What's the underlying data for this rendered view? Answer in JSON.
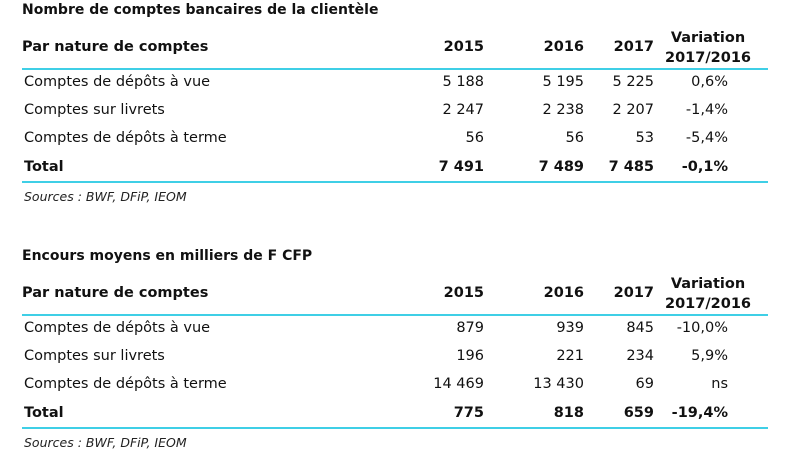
{
  "tables": [
    {
      "title": "Nombre de comptes bancaires de la clientèle",
      "headers": {
        "label": "Par nature de comptes",
        "y2015": "2015",
        "y2016": "2016",
        "y2017": "2017",
        "variation_line1": "Variation",
        "variation_line2": "2017/2016"
      },
      "rows": [
        {
          "label": "Comptes de dépôts à vue",
          "y2015": "5 188",
          "y2016": "5 195",
          "y2017": "5 225",
          "variation": "0,6%"
        },
        {
          "label": "Comptes sur livrets",
          "y2015": "2 247",
          "y2016": "2 238",
          "y2017": "2 207",
          "variation": "-1,4%"
        },
        {
          "label": "Comptes de dépôts à terme",
          "y2015": "56",
          "y2016": "56",
          "y2017": "53",
          "variation": "-5,4%"
        }
      ],
      "total": {
        "label": "Total",
        "y2015": "7 491",
        "y2016": "7 489",
        "y2017": "7 485",
        "variation": "-0,1%"
      },
      "source": "Sources : BWF, DFiP, IEOM"
    },
    {
      "title": "Encours moyens en milliers de F CFP",
      "headers": {
        "label": "Par nature de comptes",
        "y2015": "2015",
        "y2016": "2016",
        "y2017": "2017",
        "variation_line1": "Variation",
        "variation_line2": "2017/2016"
      },
      "rows": [
        {
          "label": "Comptes de dépôts à vue",
          "y2015": "879",
          "y2016": "939",
          "y2017": "845",
          "variation": "-10,0%"
        },
        {
          "label": "Comptes sur livrets",
          "y2015": "196",
          "y2016": "221",
          "y2017": "234",
          "variation": "5,9%"
        },
        {
          "label": "Comptes de dépôts à terme",
          "y2015": "14 469",
          "y2016": "13 430",
          "y2017": "69",
          "variation": "ns"
        }
      ],
      "total": {
        "label": "Total",
        "y2015": "775",
        "y2016": "818",
        "y2017": "659",
        "variation": "-19,4%"
      },
      "source": "Sources : BWF, DFiP, IEOM"
    }
  ]
}
